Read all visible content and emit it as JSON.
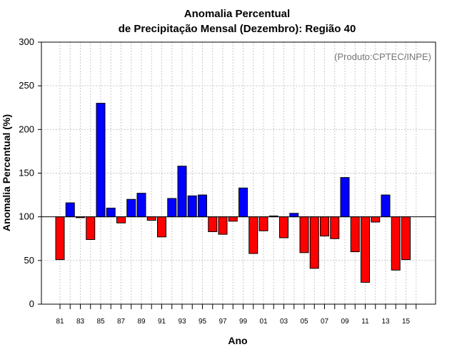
{
  "chart_data": {
    "type": "bar",
    "title": [
      "Anomalia Percentual",
      "de Precipitação Mensal (Dezembro): Região 40"
    ],
    "xlabel": "Ano",
    "ylabel": "Anomalia Percentual (%)",
    "credit": "(Produto:CPTEC/INPE)",
    "ylim": [
      0,
      300
    ],
    "yticks": [
      0,
      50,
      100,
      150,
      200,
      250,
      300
    ],
    "baseline": 100,
    "grid": true,
    "colors": {
      "above": "#0000ff",
      "below": "#ff0000"
    },
    "categories": [
      "81",
      "82",
      "83",
      "84",
      "85",
      "86",
      "87",
      "88",
      "89",
      "90",
      "91",
      "92",
      "93",
      "94",
      "95",
      "96",
      "97",
      "98",
      "99",
      "00",
      "01",
      "02",
      "03",
      "04",
      "05",
      "06",
      "07",
      "08",
      "09",
      "10",
      "11",
      "12",
      "13",
      "14",
      "15",
      "16"
    ],
    "xtick_labels": [
      "81",
      "83",
      "85",
      "87",
      "89",
      "91",
      "93",
      "95",
      "97",
      "99",
      "01",
      "03",
      "05",
      "07",
      "09",
      "11",
      "13",
      "15"
    ],
    "values": [
      51,
      116,
      99,
      74,
      230,
      110,
      93,
      120,
      127,
      96,
      77,
      121,
      158,
      124,
      125,
      83,
      80,
      95,
      133,
      58,
      84,
      101,
      76,
      104,
      59,
      41,
      78,
      75,
      145,
      60,
      25,
      94,
      125,
      39,
      51,
      null
    ]
  }
}
